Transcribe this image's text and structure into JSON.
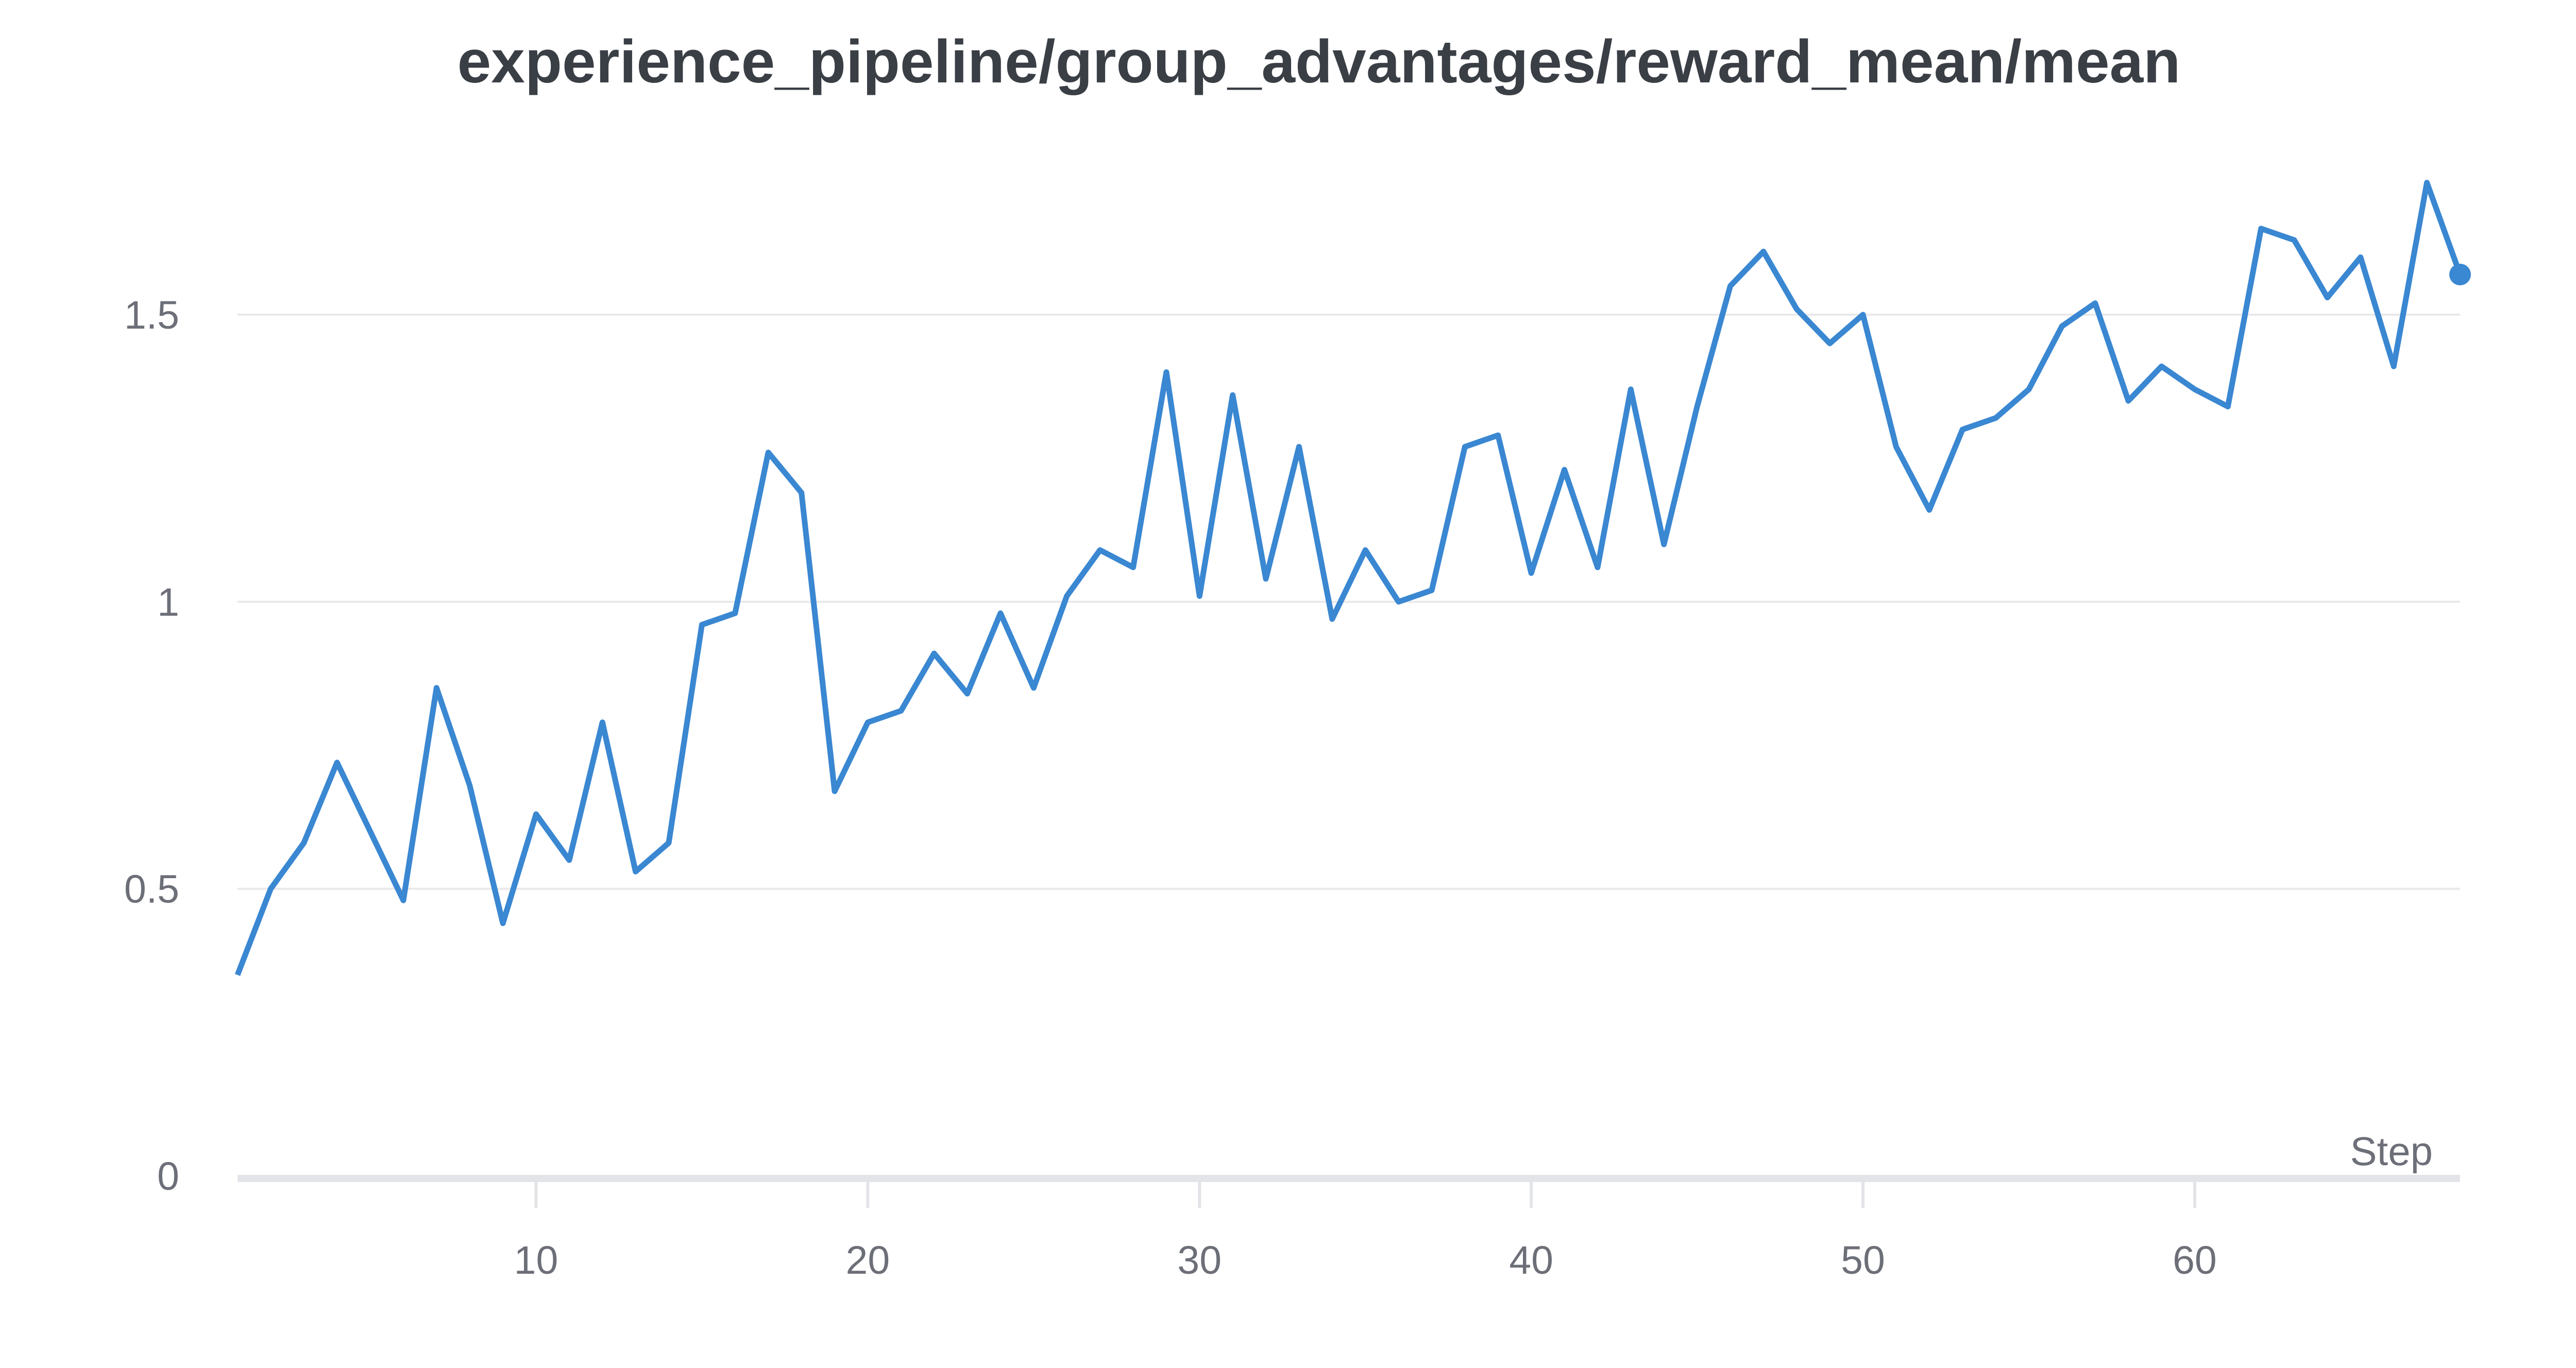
{
  "page": {
    "background": "#ffffff"
  },
  "chart_data": {
    "type": "line",
    "title": "experience_pipeline/group_advantages/reward_mean/mean",
    "xlabel": "Step",
    "ylabel": "",
    "x_start": 1,
    "x_increment": 1,
    "series": [
      {
        "name": "experience_pipeline/group_advantages/reward_mean/mean",
        "color": "#3a87d2",
        "end_point_marker": true,
        "values": [
          0.35,
          0.5,
          0.58,
          0.72,
          0.6,
          0.48,
          0.85,
          0.68,
          0.44,
          0.63,
          0.55,
          0.79,
          0.53,
          0.58,
          0.96,
          0.98,
          1.26,
          1.19,
          0.67,
          0.79,
          0.81,
          0.91,
          0.84,
          0.98,
          0.85,
          1.01,
          1.09,
          1.06,
          1.4,
          1.01,
          1.36,
          1.04,
          1.27,
          0.97,
          1.09,
          1.0,
          1.02,
          1.27,
          1.29,
          1.05,
          1.23,
          1.06,
          1.37,
          1.1,
          1.34,
          1.55,
          1.61,
          1.51,
          1.45,
          1.5,
          1.27,
          1.16,
          1.3,
          1.32,
          1.37,
          1.48,
          1.52,
          1.35,
          1.41,
          1.37,
          1.34,
          1.65,
          1.63,
          1.53,
          1.6,
          1.41,
          1.73,
          1.57
        ]
      }
    ],
    "xlim": [
      1,
      68
    ],
    "ylim": [
      0,
      1.8
    ],
    "x_ticks": [
      10,
      20,
      30,
      40,
      50,
      60
    ],
    "y_ticks": [
      0,
      0.5,
      1,
      1.5
    ],
    "y_tick_labels": [
      "0",
      "0.5",
      "1",
      "1.5"
    ],
    "grid": "horizontal",
    "legend_position": "none"
  },
  "colors": {
    "accent_line": "#3a87d2",
    "title_text": "#3a3e45",
    "tick_text": "#6d6f78",
    "gridline": "#e9e9eb",
    "axis_line": "#e3e4e7",
    "background": "#ffffff"
  }
}
